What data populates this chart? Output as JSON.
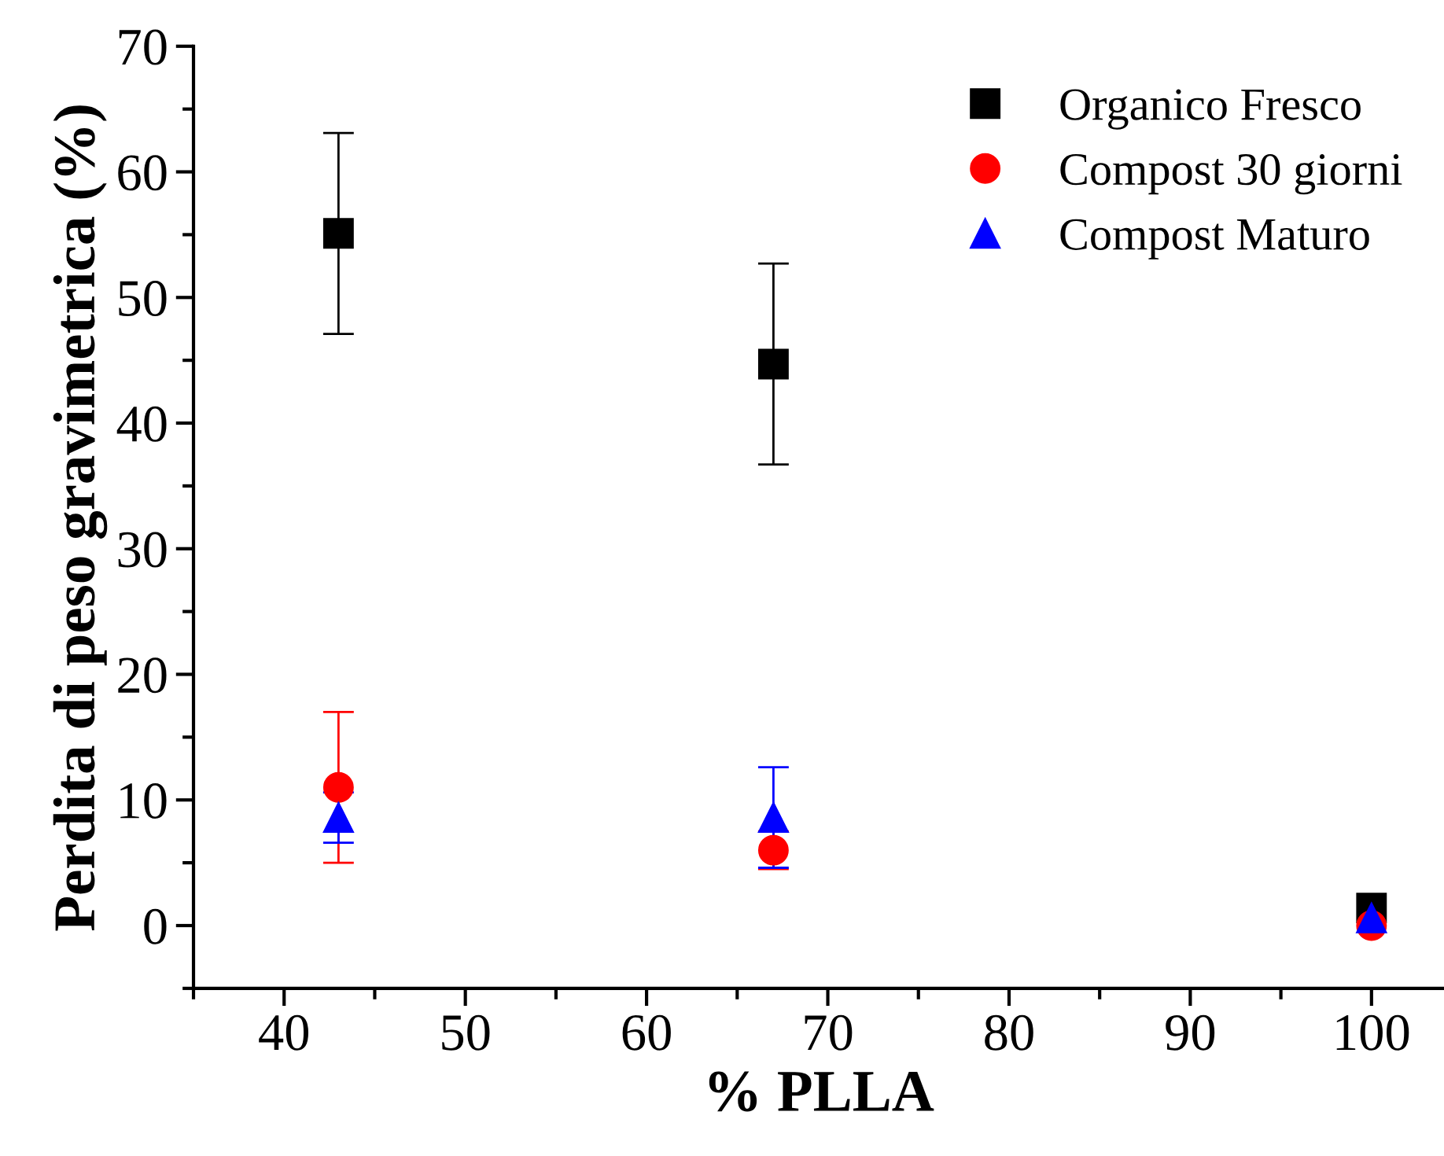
{
  "chart_data": {
    "type": "scatter",
    "xlabel": "% PLLA",
    "ylabel": "Perdita di peso gravimetrica (%)",
    "x": [
      43,
      67,
      100
    ],
    "series": [
      {
        "name": "Organico Fresco",
        "color": "#000000",
        "marker": "square",
        "values": [
          55.1,
          44.7,
          1.4
        ],
        "errors": [
          8,
          8,
          null
        ]
      },
      {
        "name": "Compost 30 giorni",
        "color": "#ff0000",
        "marker": "circle",
        "values": [
          11.0,
          6.0,
          0
        ],
        "errors": [
          6,
          1.5,
          null
        ]
      },
      {
        "name": "Compost Maturo",
        "color": "#0000ff",
        "marker": "triangle",
        "values": [
          8.6,
          8.6,
          0.6
        ],
        "errors": [
          2,
          4,
          null
        ]
      }
    ],
    "xlim": [
      35,
      104
    ],
    "xticks": [
      40,
      50,
      60,
      70,
      80,
      90,
      100
    ],
    "ylim": [
      -5,
      70
    ],
    "yticks": [
      0,
      10,
      20,
      30,
      40,
      50,
      60,
      70
    ],
    "grid": false,
    "legend": "top right"
  }
}
